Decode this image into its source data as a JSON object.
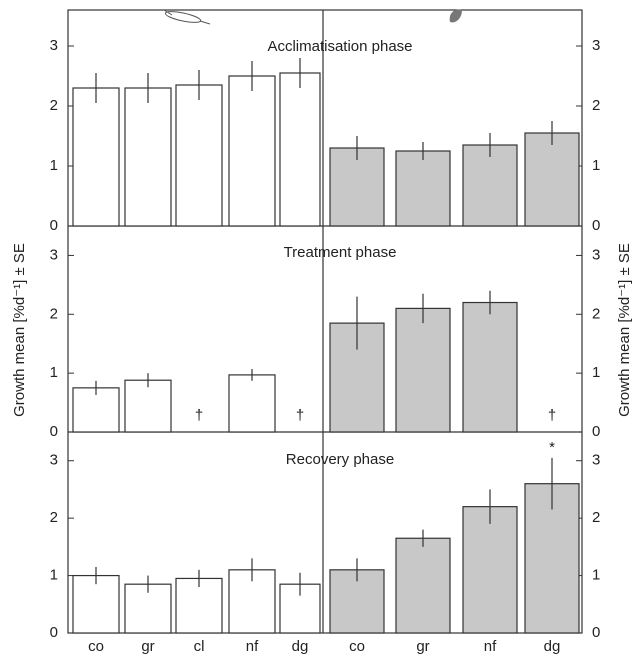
{
  "chart_data": [
    {
      "type": "bar",
      "title": "Acclimatisation phase",
      "values": [
        2.3,
        2.3,
        2.35,
        2.5,
        2.55,
        1.3,
        1.25,
        1.35,
        1.55
      ],
      "errors": [
        0.25,
        0.25,
        0.25,
        0.25,
        0.25,
        0.2,
        0.15,
        0.2,
        0.2
      ],
      "colors": [
        "#ffffff",
        "#ffffff",
        "#ffffff",
        "#ffffff",
        "#ffffff",
        "#c8c8c8",
        "#c8c8c8",
        "#c8c8c8",
        "#c8c8c8"
      ],
      "ylim": [
        0,
        3.6
      ],
      "yticks": [
        0,
        1,
        2,
        3
      ]
    },
    {
      "type": "bar",
      "title": "Treatment phase",
      "ylabel": "Growth mean [%d⁻¹] ± SE",
      "values": [
        0.75,
        0.88,
        null,
        0.97,
        null,
        1.85,
        2.1,
        2.2,
        null
      ],
      "errors": [
        0.12,
        0.12,
        null,
        0.1,
        null,
        0.45,
        0.25,
        0.2,
        null
      ],
      "value_labels": [
        null,
        null,
        "†",
        null,
        "†",
        null,
        null,
        null,
        "†"
      ],
      "colors": [
        "#ffffff",
        "#ffffff",
        "#ffffff",
        "#ffffff",
        "#ffffff",
        "#c8c8c8",
        "#c8c8c8",
        "#c8c8c8",
        "#c8c8c8"
      ],
      "ylim": [
        0,
        3.5
      ],
      "yticks": [
        0,
        1,
        2,
        3
      ]
    },
    {
      "type": "bar",
      "title": "Recovery phase",
      "categories": [
        "co",
        "gr",
        "cl",
        "nf",
        "dg",
        "co",
        "gr",
        "nf",
        "dg"
      ],
      "values": [
        1.0,
        0.85,
        0.95,
        1.1,
        0.85,
        1.1,
        1.65,
        2.2,
        2.6
      ],
      "errors": [
        0.15,
        0.15,
        0.15,
        0.2,
        0.2,
        0.2,
        0.15,
        0.3,
        0.45
      ],
      "value_labels": [
        null,
        null,
        null,
        null,
        null,
        null,
        null,
        null,
        "*"
      ],
      "colors": [
        "#ffffff",
        "#ffffff",
        "#ffffff",
        "#ffffff",
        "#ffffff",
        "#c8c8c8",
        "#c8c8c8",
        "#c8c8c8",
        "#c8c8c8"
      ],
      "ylim": [
        0,
        3.5
      ],
      "yticks": [
        0,
        1,
        2,
        3
      ]
    }
  ]
}
